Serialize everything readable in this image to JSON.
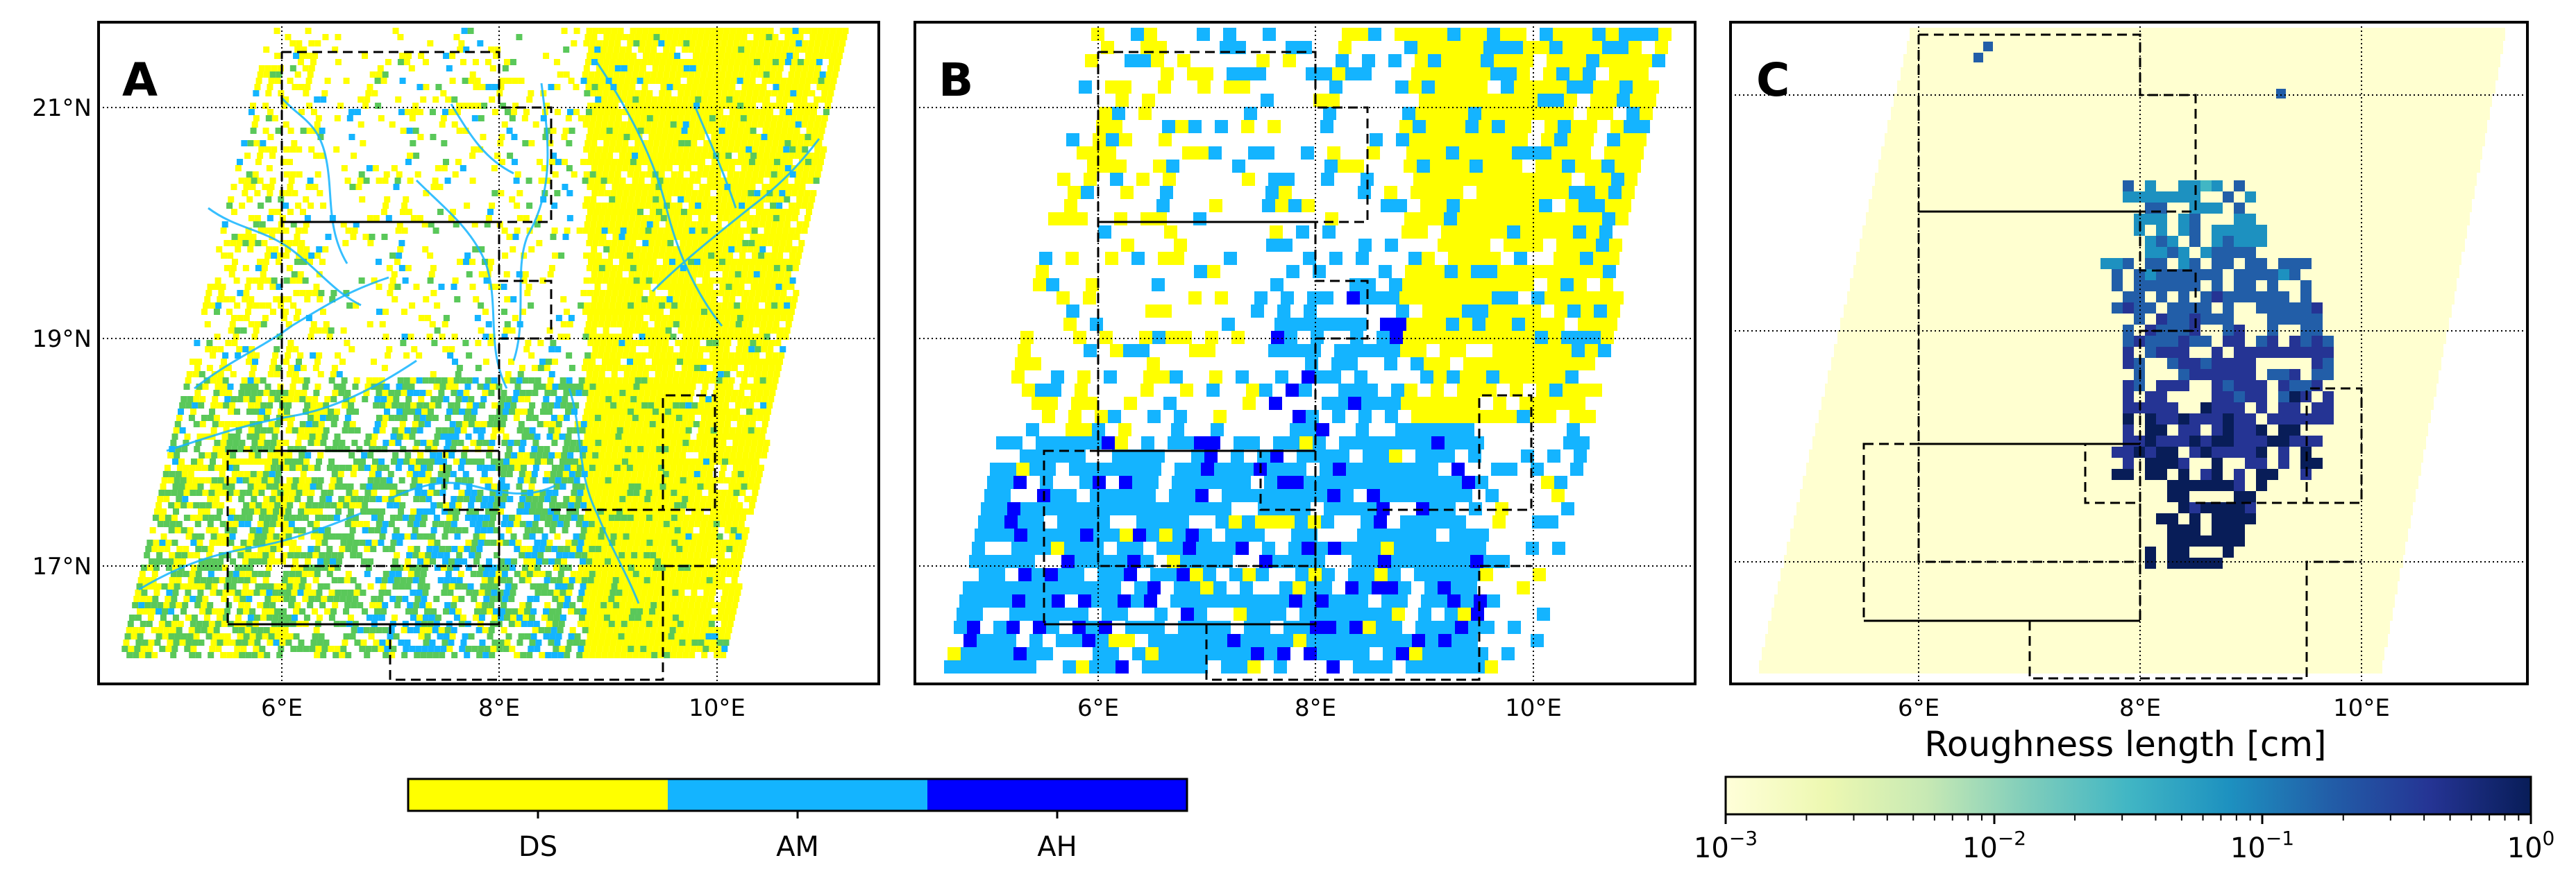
{
  "panels": [
    {
      "letter": "A",
      "layer": "water-class-highres"
    },
    {
      "letter": "B",
      "layer": "water-class-gridded"
    },
    {
      "letter": "C",
      "layer": "roughness-length"
    }
  ],
  "axes": {
    "lon_ticks": [
      "6°E",
      "8°E",
      "10°E"
    ],
    "lat_ticks": [
      "21°N",
      "19°N",
      "17°N"
    ]
  },
  "legend_classes": {
    "items": [
      {
        "label": "DS",
        "color": "#ffff00"
      },
      {
        "label": "AM",
        "color": "#14b4ff"
      },
      {
        "label": "AH",
        "color": "#0000ff"
      }
    ]
  },
  "colorbar": {
    "title": "Roughness length [cm]",
    "scale": "log",
    "ticks": [
      {
        "base": "10",
        "exp": "−3"
      },
      {
        "base": "10",
        "exp": "−2"
      },
      {
        "base": "10",
        "exp": "−1"
      },
      {
        "base": "10",
        "exp": "0"
      }
    ],
    "colormap": [
      "#ffffd9",
      "#edf8b1",
      "#c7e9b4",
      "#7fcdbb",
      "#41b6c4",
      "#1d91c0",
      "#225ea8",
      "#253494",
      "#081d58"
    ],
    "swath_color": "#ffffd0"
  }
}
